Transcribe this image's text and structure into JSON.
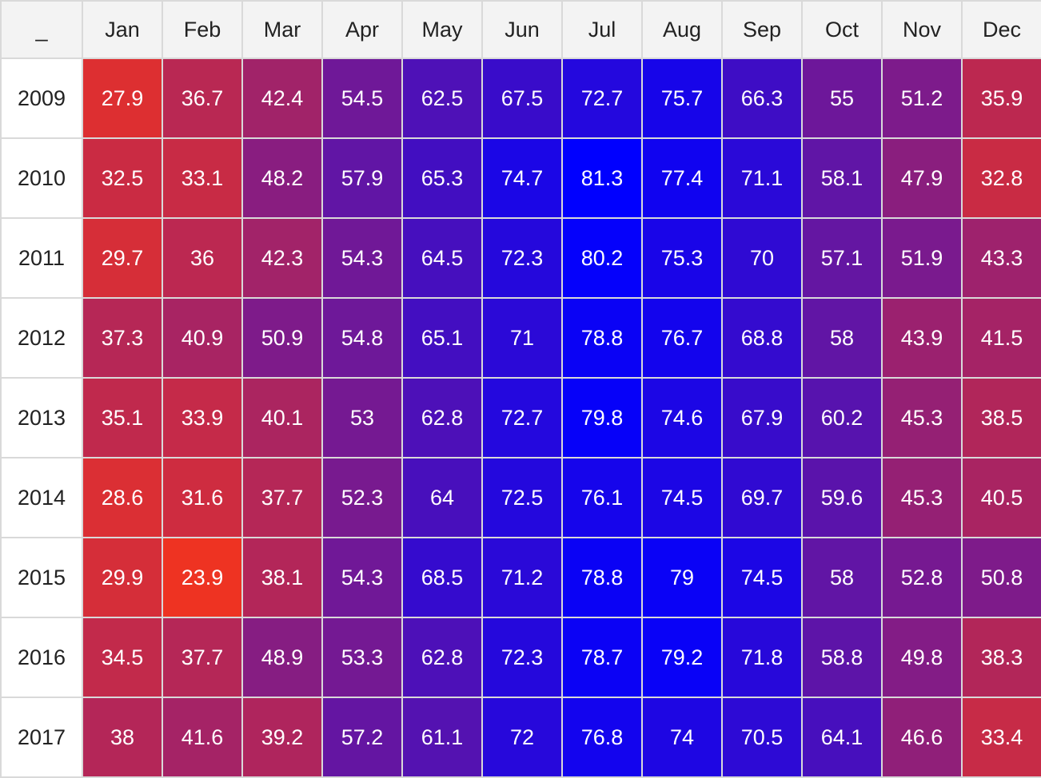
{
  "chart_data": {
    "type": "heatmap",
    "corner_label": "_",
    "x_categories": [
      "Jan",
      "Feb",
      "Mar",
      "Apr",
      "May",
      "Jun",
      "Jul",
      "Aug",
      "Sep",
      "Oct",
      "Nov",
      "Dec"
    ],
    "y_categories": [
      "2009",
      "2010",
      "2011",
      "2012",
      "2013",
      "2014",
      "2015",
      "2016",
      "2017"
    ],
    "values": [
      [
        "27.9",
        "36.7",
        "42.4",
        "54.5",
        "62.5",
        "67.5",
        "72.7",
        "75.7",
        "66.3",
        "55",
        "51.2",
        "35.9"
      ],
      [
        "32.5",
        "33.1",
        "48.2",
        "57.9",
        "65.3",
        "74.7",
        "81.3",
        "77.4",
        "71.1",
        "58.1",
        "47.9",
        "32.8"
      ],
      [
        "29.7",
        "36",
        "42.3",
        "54.3",
        "64.5",
        "72.3",
        "80.2",
        "75.3",
        "70",
        "57.1",
        "51.9",
        "43.3"
      ],
      [
        "37.3",
        "40.9",
        "50.9",
        "54.8",
        "65.1",
        "71",
        "78.8",
        "76.7",
        "68.8",
        "58",
        "43.9",
        "41.5"
      ],
      [
        "35.1",
        "33.9",
        "40.1",
        "53",
        "62.8",
        "72.7",
        "79.8",
        "74.6",
        "67.9",
        "60.2",
        "45.3",
        "38.5"
      ],
      [
        "28.6",
        "31.6",
        "37.7",
        "52.3",
        "64",
        "72.5",
        "76.1",
        "74.5",
        "69.7",
        "59.6",
        "45.3",
        "40.5"
      ],
      [
        "29.9",
        "23.9",
        "38.1",
        "54.3",
        "68.5",
        "71.2",
        "78.8",
        "79",
        "74.5",
        "58",
        "52.8",
        "50.8"
      ],
      [
        "34.5",
        "37.7",
        "48.9",
        "53.3",
        "62.8",
        "72.3",
        "78.7",
        "79.2",
        "71.8",
        "58.8",
        "49.8",
        "38.3"
      ],
      [
        "38",
        "41.6",
        "39.2",
        "57.2",
        "61.1",
        "72",
        "76.8",
        "74",
        "70.5",
        "64.1",
        "46.6",
        "33.4"
      ]
    ],
    "color_scale": {
      "low_value": 23.9,
      "high_value": 81.3,
      "low_color": "#ee3322",
      "high_color": "#0000ff"
    }
  }
}
